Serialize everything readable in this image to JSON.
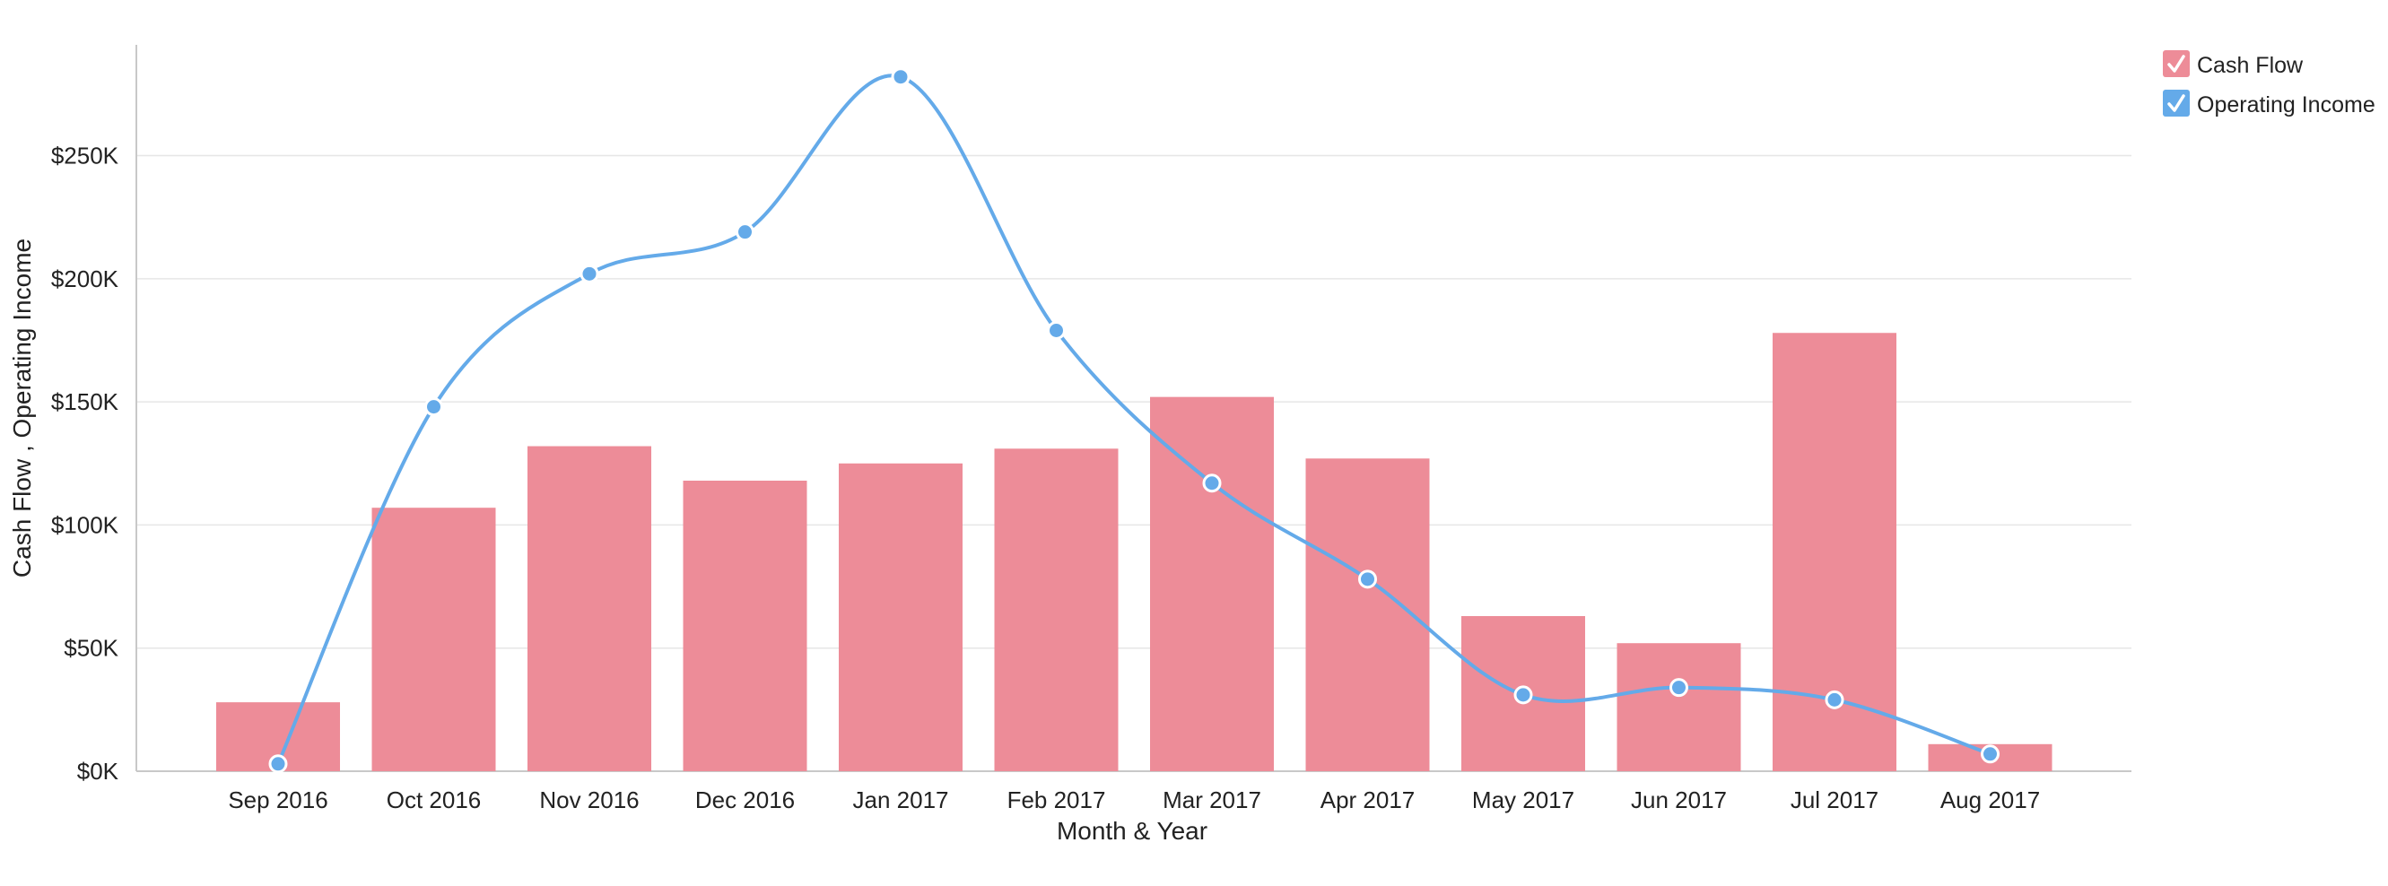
{
  "chart_data": {
    "type": "bar",
    "title": "",
    "xlabel": "Month & Year",
    "ylabel": "Cash Flow , Operating Income",
    "categories": [
      "Sep 2016",
      "Oct 2016",
      "Nov 2016",
      "Dec 2016",
      "Jan 2017",
      "Feb 2017",
      "Mar 2017",
      "Apr 2017",
      "May 2017",
      "Jun 2017",
      "Jul 2017",
      "Aug 2017"
    ],
    "ylim": [
      0,
      295000
    ],
    "yticks": [
      0,
      50000,
      100000,
      150000,
      200000,
      250000
    ],
    "ytick_labels": [
      "$0K",
      "$50K",
      "$100K",
      "$150K",
      "$200K",
      "$250K"
    ],
    "grid": true,
    "legend_position": "top-right",
    "series": [
      {
        "name": "Cash Flow",
        "type": "bar",
        "color": "#ED8C98",
        "values": [
          28000,
          107000,
          132000,
          118000,
          125000,
          131000,
          152000,
          127000,
          63000,
          52000,
          178000,
          11000
        ]
      },
      {
        "name": "Operating Income",
        "type": "line",
        "color": "#64AAE9",
        "values": [
          3000,
          148000,
          202000,
          219000,
          282000,
          179000,
          117000,
          78000,
          31000,
          34000,
          29000,
          7000
        ]
      }
    ]
  }
}
